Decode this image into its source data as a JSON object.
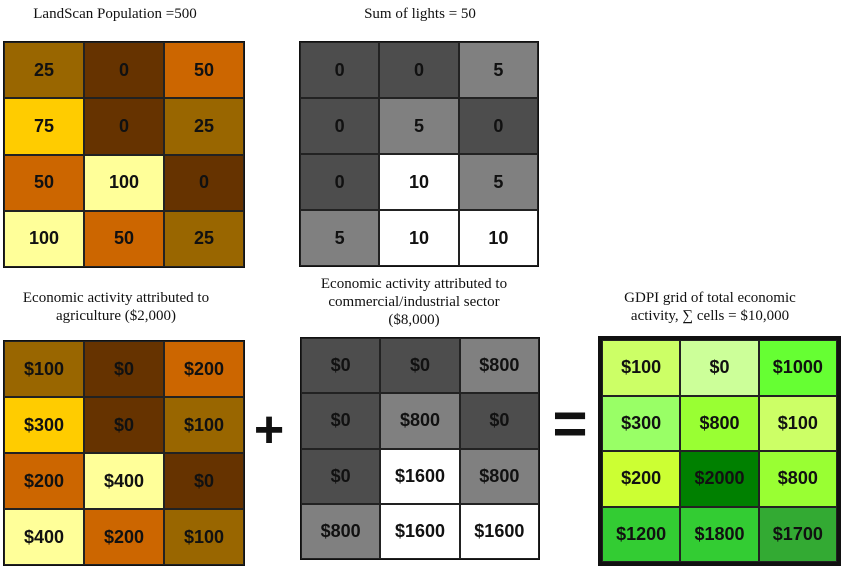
{
  "panels": [
    {
      "id": "landscan",
      "caption": "LandScan Population =500",
      "cells": [
        {
          "v": "25",
          "c": "#996600"
        },
        {
          "v": "0",
          "c": "#663300"
        },
        {
          "v": "50",
          "c": "#cc6600"
        },
        {
          "v": "75",
          "c": "#ffcc00"
        },
        {
          "v": "0",
          "c": "#663300"
        },
        {
          "v": "25",
          "c": "#996600"
        },
        {
          "v": "50",
          "c": "#cc6600"
        },
        {
          "v": "100",
          "c": "#ffff99"
        },
        {
          "v": "0",
          "c": "#663300"
        },
        {
          "v": "100",
          "c": "#ffff99"
        },
        {
          "v": "50",
          "c": "#cc6600"
        },
        {
          "v": "25",
          "c": "#996600"
        }
      ]
    },
    {
      "id": "lights",
      "caption": "Sum of lights = 50",
      "cells": [
        {
          "v": "0",
          "c": "#4d4d4d"
        },
        {
          "v": "0",
          "c": "#4d4d4d"
        },
        {
          "v": "5",
          "c": "#808080"
        },
        {
          "v": "0",
          "c": "#4d4d4d"
        },
        {
          "v": "5",
          "c": "#808080"
        },
        {
          "v": "0",
          "c": "#4d4d4d"
        },
        {
          "v": "0",
          "c": "#4d4d4d"
        },
        {
          "v": "10",
          "c": "#ffffff"
        },
        {
          "v": "5",
          "c": "#808080"
        },
        {
          "v": "5",
          "c": "#808080"
        },
        {
          "v": "10",
          "c": "#ffffff"
        },
        {
          "v": "10",
          "c": "#ffffff"
        }
      ]
    },
    {
      "id": "agriculture",
      "caption": "Economic activity attributed to\nagriculture ($2,000)",
      "cells": [
        {
          "v": "$100",
          "c": "#996600"
        },
        {
          "v": "$0",
          "c": "#663300"
        },
        {
          "v": "$200",
          "c": "#cc6600"
        },
        {
          "v": "$300",
          "c": "#ffcc00"
        },
        {
          "v": "$0",
          "c": "#663300"
        },
        {
          "v": "$100",
          "c": "#996600"
        },
        {
          "v": "$200",
          "c": "#cc6600"
        },
        {
          "v": "$400",
          "c": "#ffff99"
        },
        {
          "v": "$0",
          "c": "#663300"
        },
        {
          "v": "$400",
          "c": "#ffff99"
        },
        {
          "v": "$200",
          "c": "#cc6600"
        },
        {
          "v": "$100",
          "c": "#996600"
        }
      ]
    },
    {
      "id": "commercial",
      "caption": "Economic activity attributed to\ncommercial/industrial sector\n($8,000)",
      "cells": [
        {
          "v": "$0",
          "c": "#4d4d4d"
        },
        {
          "v": "$0",
          "c": "#4d4d4d"
        },
        {
          "v": "$800",
          "c": "#808080"
        },
        {
          "v": "$0",
          "c": "#4d4d4d"
        },
        {
          "v": "$800",
          "c": "#808080"
        },
        {
          "v": "$0",
          "c": "#4d4d4d"
        },
        {
          "v": "$0",
          "c": "#4d4d4d"
        },
        {
          "v": "$1600",
          "c": "#ffffff"
        },
        {
          "v": "$800",
          "c": "#808080"
        },
        {
          "v": "$800",
          "c": "#808080"
        },
        {
          "v": "$1600",
          "c": "#ffffff"
        },
        {
          "v": "$1600",
          "c": "#ffffff"
        }
      ]
    },
    {
      "id": "gdpi",
      "caption": "GDPI grid of total economic\nactivity, ∑ cells = $10,000",
      "cells": [
        {
          "v": "$100",
          "c": "#ccff66"
        },
        {
          "v": "$0",
          "c": "#ccff99"
        },
        {
          "v": "$1000",
          "c": "#66ff33"
        },
        {
          "v": "$300",
          "c": "#99ff66"
        },
        {
          "v": "$800",
          "c": "#99ff33"
        },
        {
          "v": "$100",
          "c": "#ccff66"
        },
        {
          "v": "$200",
          "c": "#ccff33"
        },
        {
          "v": "$2000",
          "c": "#008000"
        },
        {
          "v": "$800",
          "c": "#99ff33"
        },
        {
          "v": "$1200",
          "c": "#33cc33"
        },
        {
          "v": "$1800",
          "c": "#33cc33"
        },
        {
          "v": "$1700",
          "c": "#33aa33"
        }
      ]
    }
  ],
  "operators": {
    "plus": "+",
    "equals": "="
  }
}
